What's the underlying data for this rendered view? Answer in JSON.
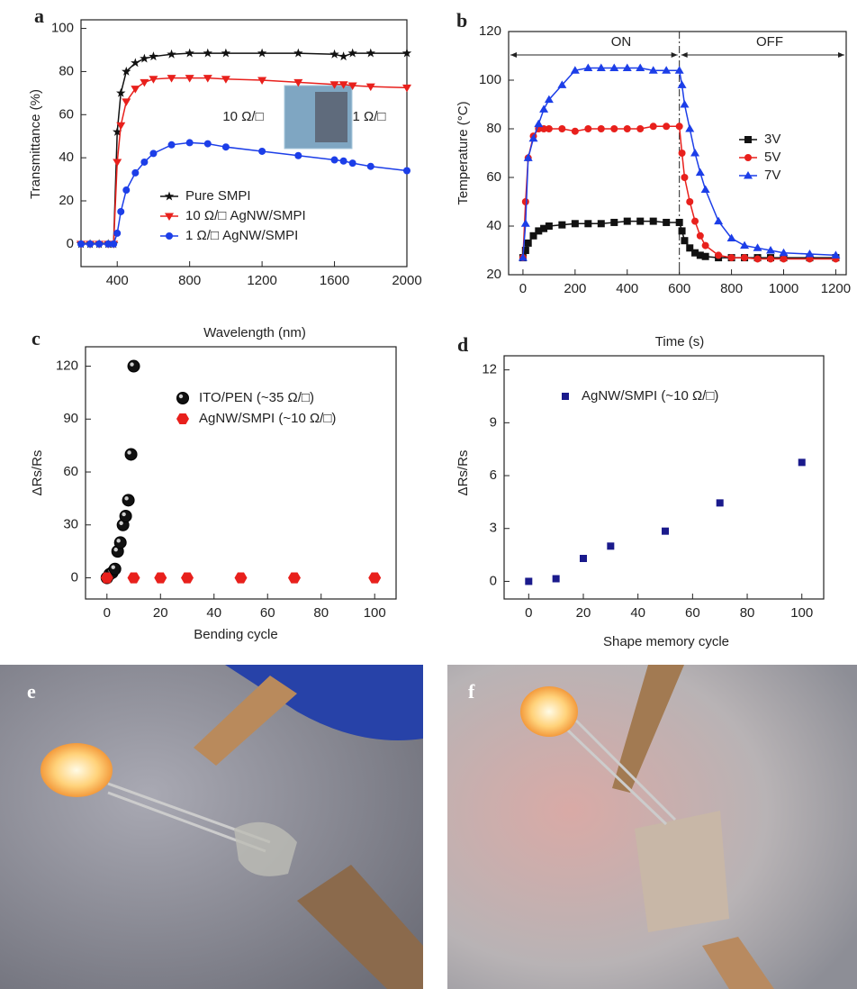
{
  "chart_data": [
    {
      "type": "line",
      "panel": "a",
      "xlabel": "Wavelength (nm)",
      "ylabel": "Transmittance (%)",
      "xlim": [
        200,
        2000
      ],
      "ylim": [
        -10.5,
        104
      ],
      "xticks": [
        400,
        800,
        1200,
        1600,
        2000
      ],
      "yticks": [
        0,
        20,
        40,
        60,
        80,
        100
      ],
      "x": [
        200,
        250,
        300,
        350,
        380,
        400,
        420,
        450,
        500,
        550,
        600,
        700,
        800,
        900,
        1000,
        1200,
        1400,
        1600,
        1650,
        1700,
        1800,
        2000
      ],
      "series": [
        {
          "name": "Pure SMPI",
          "color": "#111111",
          "marker": "star",
          "values": [
            0,
            0,
            0,
            0,
            0,
            52,
            70,
            80,
            84,
            86,
            87,
            88,
            88.5,
            88.5,
            88.5,
            88.5,
            88.5,
            88,
            87,
            88.5,
            88.5,
            88.5
          ]
        },
        {
          "name": "10 Ω/□ AgNW/SMPI",
          "color": "#e8201c",
          "marker": "triangle-down",
          "values": [
            0,
            0,
            0,
            0,
            0,
            38,
            55,
            66,
            72,
            75,
            76.5,
            77,
            77,
            77,
            76.5,
            76,
            75,
            74,
            74,
            73.5,
            73,
            72.5
          ]
        },
        {
          "name": "1 Ω/□  AgNW/SMPI",
          "color": "#1c3ee8",
          "marker": "circle",
          "values": [
            0,
            0,
            0,
            0,
            0,
            5,
            15,
            25,
            33,
            38,
            42,
            46,
            47,
            46.5,
            45,
            43,
            41,
            39,
            38.5,
            37.5,
            36,
            34
          ]
        }
      ],
      "annotations": [
        "10 Ω/□",
        "1 Ω/□"
      ]
    },
    {
      "type": "line",
      "panel": "b",
      "xlabel": "Time (s)",
      "ylabel": "Temperature (°C)",
      "xlim": [
        -55,
        1240
      ],
      "ylim": [
        20,
        120
      ],
      "xticks": [
        0,
        200,
        400,
        600,
        800,
        1000,
        1200
      ],
      "yticks": [
        20,
        40,
        60,
        80,
        100,
        120
      ],
      "vline": 600,
      "x": [
        0,
        10,
        20,
        40,
        60,
        80,
        100,
        150,
        200,
        250,
        300,
        350,
        400,
        450,
        500,
        550,
        600,
        610,
        620,
        640,
        660,
        680,
        700,
        750,
        800,
        850,
        900,
        950,
        1000,
        1100,
        1200
      ],
      "series": [
        {
          "name": "3V",
          "color": "#111111",
          "marker": "square",
          "values": [
            27,
            30,
            33,
            36,
            38,
            39,
            40,
            40.5,
            41,
            41,
            41,
            41.5,
            42,
            42,
            42,
            41.5,
            41.5,
            38,
            34,
            31,
            29,
            28,
            27.5,
            27,
            27,
            27,
            27,
            27,
            27,
            27,
            27
          ]
        },
        {
          "name": "5V",
          "color": "#e8201c",
          "marker": "circle",
          "values": [
            27,
            50,
            68,
            77,
            80,
            80,
            80,
            80,
            79,
            80,
            80,
            80,
            80,
            80,
            81,
            81,
            81,
            70,
            60,
            50,
            42,
            36,
            32,
            28,
            27,
            27,
            26.5,
            26.5,
            26.5,
            26.5,
            26.5
          ]
        },
        {
          "name": "7V",
          "color": "#1c3ee8",
          "marker": "triangle-up",
          "values": [
            27,
            41,
            68,
            76,
            82,
            88,
            92,
            98,
            104,
            105,
            105,
            105,
            105,
            105,
            104,
            104,
            104,
            98,
            90,
            80,
            70,
            62,
            55,
            42,
            35,
            32,
            31,
            30,
            29,
            28.5,
            28
          ]
        }
      ],
      "annotations": [
        "ON",
        "OFF"
      ]
    },
    {
      "type": "scatter",
      "panel": "c",
      "xlabel": "Bending cycle",
      "ylabel": "ΔRs/Rs",
      "xlim": [
        -8,
        108
      ],
      "ylim": [
        -12,
        131
      ],
      "xticks": [
        0,
        20,
        40,
        60,
        80,
        100
      ],
      "yticks": [
        0,
        30,
        60,
        90,
        120
      ],
      "series": [
        {
          "name": "ITO/PEN (~35 Ω/□)",
          "color": "#111111",
          "marker": "sphere",
          "x": [
            0,
            1,
            2,
            3,
            4,
            5,
            6,
            7,
            8,
            9,
            10
          ],
          "values": [
            0,
            2,
            3,
            5,
            15,
            20,
            30,
            35,
            44,
            70,
            120
          ]
        },
        {
          "name": "AgNW/SMPI (~10 Ω/□)",
          "color": "#e8201c",
          "marker": "hexagon",
          "x": [
            0,
            10,
            20,
            30,
            50,
            70,
            100
          ],
          "values": [
            0,
            0,
            0,
            0,
            0,
            0,
            0
          ]
        }
      ]
    },
    {
      "type": "scatter",
      "panel": "d",
      "xlabel": "Shape memory cycle",
      "ylabel": "ΔRs/Rs",
      "xlim": [
        -9,
        108
      ],
      "ylim": [
        -1,
        12.8
      ],
      "xticks": [
        0,
        20,
        40,
        60,
        80,
        100
      ],
      "yticks": [
        0,
        3,
        6,
        9,
        12
      ],
      "series": [
        {
          "name": "AgNW/SMPI (~10 Ω/□)",
          "color": "#1a1a8c",
          "marker": "square",
          "x": [
            0,
            10,
            20,
            30,
            50,
            70,
            100
          ],
          "values": [
            0,
            0.15,
            1.3,
            2.0,
            2.85,
            4.45,
            6.75
          ]
        }
      ]
    }
  ],
  "photos": [
    {
      "panel": "e"
    },
    {
      "panel": "f"
    }
  ]
}
